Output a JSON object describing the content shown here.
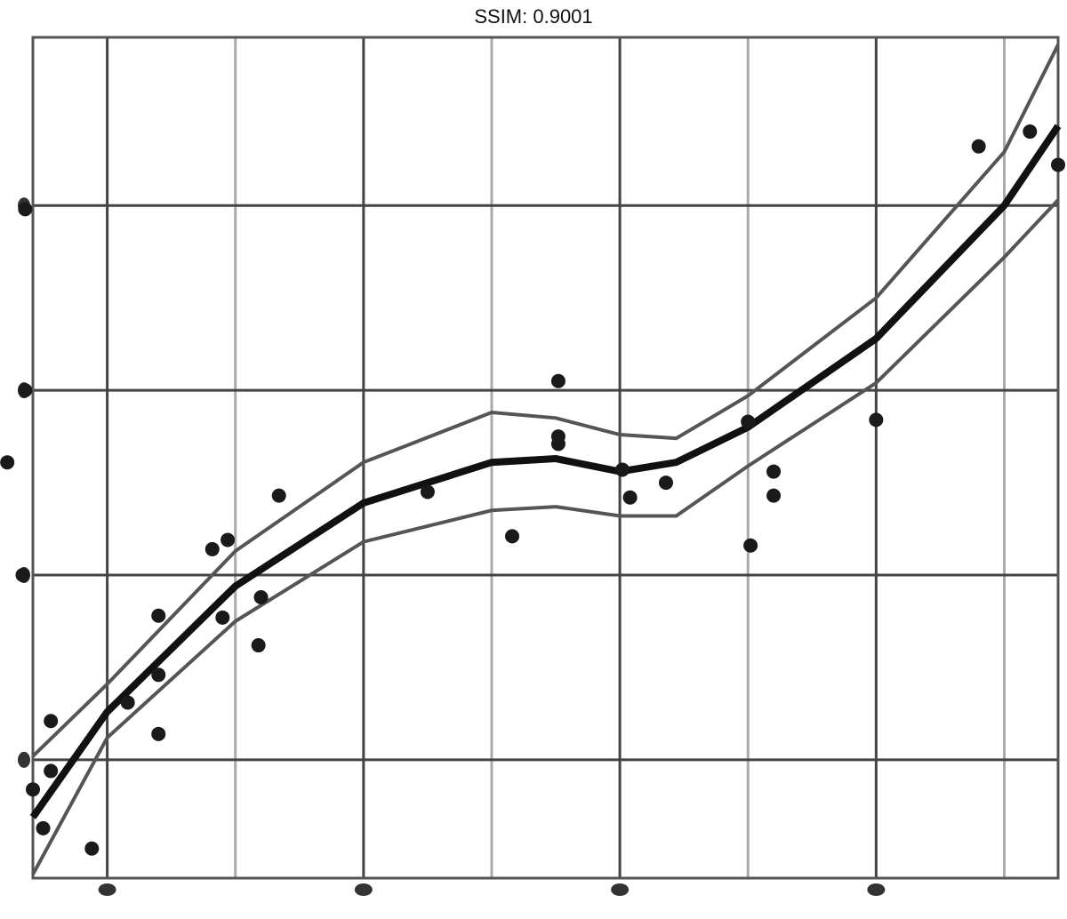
{
  "chart_data": {
    "type": "scatter",
    "title": "SSIM: 0.9001",
    "x": [
      0.68,
      0.68,
      0.61,
      0.67,
      0.71,
      0.75,
      0.78,
      0.78,
      0.94,
      1.08,
      1.2,
      1.2,
      1.2,
      1.41,
      1.47,
      1.45,
      1.6,
      1.59,
      1.67,
      2.25,
      2.58,
      2.76,
      2.76,
      2.76,
      3.01,
      3.04,
      3.18,
      3.5,
      3.51,
      3.6,
      3.6,
      4.0,
      4.4,
      4.6,
      4.71
    ],
    "y": [
      3.98,
      3.0,
      2.61,
      2.0,
      0.84,
      0.63,
      1.21,
      0.94,
      0.52,
      1.31,
      1.78,
      1.46,
      1.14,
      2.14,
      2.19,
      1.77,
      1.88,
      1.62,
      2.43,
      2.45,
      2.21,
      3.05,
      2.75,
      2.71,
      2.57,
      2.42,
      2.5,
      2.83,
      2.16,
      2.56,
      2.43,
      2.84,
      4.32,
      4.4,
      4.22
    ],
    "color": "#1a1a1a",
    "smooth": {
      "x": [
        0.71,
        1.0,
        1.5,
        2.0,
        2.5,
        2.75,
        3.0,
        3.22,
        3.5,
        4.0,
        4.5,
        4.71
      ],
      "y": [
        0.69,
        1.26,
        1.94,
        2.39,
        2.61,
        2.63,
        2.56,
        2.61,
        2.8,
        3.28,
        4.0,
        4.43
      ],
      "upper": [
        1.02,
        1.41,
        2.13,
        2.61,
        2.88,
        2.85,
        2.76,
        2.74,
        2.97,
        3.5,
        4.29,
        4.87
      ],
      "lower": [
        0.38,
        1.12,
        1.75,
        2.18,
        2.35,
        2.37,
        2.32,
        2.32,
        2.59,
        3.04,
        3.72,
        4.03
      ],
      "color": "#111111",
      "band_color": "#555555"
    },
    "xlim": [
      0.71,
      4.71
    ],
    "ylim": [
      0.36,
      4.91
    ],
    "xticks": [
      1,
      2,
      3,
      4
    ],
    "yticks": [
      1,
      2,
      3,
      4
    ],
    "grid": true
  }
}
